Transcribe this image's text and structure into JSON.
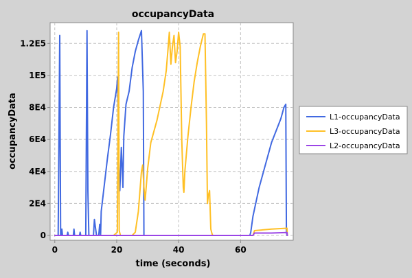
{
  "chart_data": {
    "type": "line",
    "title": "occupancyData",
    "xlabel": "time (seconds)",
    "ylabel": "occupancyData",
    "xlim": [
      -1.5,
      77
    ],
    "ylim": [
      -3000,
      133000
    ],
    "x_ticks": [
      0,
      20,
      40,
      60
    ],
    "x_tick_labels": [
      "0",
      "20",
      "40",
      "60"
    ],
    "y_ticks": [
      0,
      20000,
      40000,
      60000,
      80000,
      100000,
      120000
    ],
    "y_tick_labels": [
      "0",
      "2E4",
      "4E4",
      "6E4",
      "8E4",
      "1E5",
      "1.2E5"
    ],
    "grid": true,
    "legend_position": "right",
    "series": [
      {
        "name": "L1-occupancyData",
        "color": "#4169e1",
        "points": [
          [
            0,
            0
          ],
          [
            1.1,
            0
          ],
          [
            1.6,
            125000
          ],
          [
            1.9,
            0
          ],
          [
            2.2,
            0
          ],
          [
            2.3,
            4000
          ],
          [
            2.5,
            0
          ],
          [
            4,
            0
          ],
          [
            4.2,
            2000
          ],
          [
            4.4,
            0
          ],
          [
            6,
            0
          ],
          [
            6.2,
            4000
          ],
          [
            6.4,
            0
          ],
          [
            8,
            0
          ],
          [
            8.2,
            2000
          ],
          [
            8.4,
            0
          ],
          [
            10,
            0
          ],
          [
            10.4,
            128000
          ],
          [
            10.7,
            28000
          ],
          [
            11,
            0
          ],
          [
            11.8,
            0
          ],
          [
            12.5,
            0
          ],
          [
            12.8,
            10000
          ],
          [
            13.2,
            4000
          ],
          [
            13.5,
            0
          ],
          [
            14.2,
            0
          ],
          [
            14.5,
            7000
          ],
          [
            14.8,
            0
          ],
          [
            15,
            15000
          ],
          [
            17,
            48000
          ],
          [
            18,
            63000
          ],
          [
            19,
            80000
          ],
          [
            20,
            92000
          ],
          [
            20.3,
            99000
          ],
          [
            20.7,
            40000
          ],
          [
            21,
            28000
          ],
          [
            21.5,
            55000
          ],
          [
            22,
            30000
          ],
          [
            22.3,
            62000
          ],
          [
            23,
            82000
          ],
          [
            24,
            90000
          ],
          [
            25,
            105000
          ],
          [
            26,
            115000
          ],
          [
            27,
            122000
          ],
          [
            28,
            128000
          ],
          [
            28.6,
            90000
          ],
          [
            28.8,
            0
          ],
          [
            30,
            0
          ],
          [
            40,
            0
          ],
          [
            50,
            0
          ],
          [
            60,
            0
          ],
          [
            63,
            0
          ],
          [
            63.3,
            2000
          ],
          [
            64,
            12000
          ],
          [
            66,
            30000
          ],
          [
            68,
            44000
          ],
          [
            70,
            58000
          ],
          [
            72,
            68000
          ],
          [
            73,
            73000
          ],
          [
            74,
            80000
          ],
          [
            74.6,
            82000
          ],
          [
            74.8,
            2000
          ],
          [
            75,
            0
          ]
        ]
      },
      {
        "name": "L3-occupancyData",
        "color": "#ffc025",
        "points": [
          [
            0,
            0
          ],
          [
            19,
            0
          ],
          [
            20.2,
            2000
          ],
          [
            20.6,
            127000
          ],
          [
            20.8,
            3000
          ],
          [
            21.2,
            0
          ],
          [
            25,
            0
          ],
          [
            26,
            2000
          ],
          [
            27,
            15000
          ],
          [
            28,
            40000
          ],
          [
            28.4,
            44000
          ],
          [
            28.8,
            30000
          ],
          [
            29.2,
            22000
          ],
          [
            30,
            42000
          ],
          [
            31,
            58000
          ],
          [
            33,
            72000
          ],
          [
            35,
            90000
          ],
          [
            36,
            103000
          ],
          [
            36.5,
            115000
          ],
          [
            37,
            127000
          ],
          [
            37.5,
            107000
          ],
          [
            38,
            118000
          ],
          [
            38.5,
            125000
          ],
          [
            39,
            108000
          ],
          [
            39.5,
            115000
          ],
          [
            40,
            127000
          ],
          [
            40.5,
            118000
          ],
          [
            41,
            60000
          ],
          [
            41.5,
            30000
          ],
          [
            41.7,
            27000
          ],
          [
            42,
            40000
          ],
          [
            43,
            62000
          ],
          [
            44,
            80000
          ],
          [
            45,
            96000
          ],
          [
            46,
            108000
          ],
          [
            47,
            118000
          ],
          [
            48,
            126000
          ],
          [
            48.5,
            126000
          ],
          [
            49,
            70000
          ],
          [
            49.3,
            20000
          ],
          [
            49.6,
            25000
          ],
          [
            50,
            28000
          ],
          [
            50.4,
            4000
          ],
          [
            50.8,
            1000
          ],
          [
            51,
            0
          ],
          [
            60,
            0
          ],
          [
            64,
            0
          ],
          [
            64.5,
            3000
          ],
          [
            70,
            4000
          ],
          [
            75,
            4500
          ],
          [
            75.1,
            0
          ]
        ]
      },
      {
        "name": "L2-occupancyData",
        "color": "#9b45e6",
        "points": [
          [
            0,
            0
          ],
          [
            10,
            0
          ],
          [
            20,
            0
          ],
          [
            30,
            0
          ],
          [
            40,
            0
          ],
          [
            50,
            0
          ],
          [
            55,
            0
          ],
          [
            60,
            0
          ],
          [
            64,
            0
          ],
          [
            64.5,
            1500
          ],
          [
            70,
            1500
          ],
          [
            75,
            1800
          ],
          [
            75.1,
            0
          ]
        ]
      }
    ]
  }
}
